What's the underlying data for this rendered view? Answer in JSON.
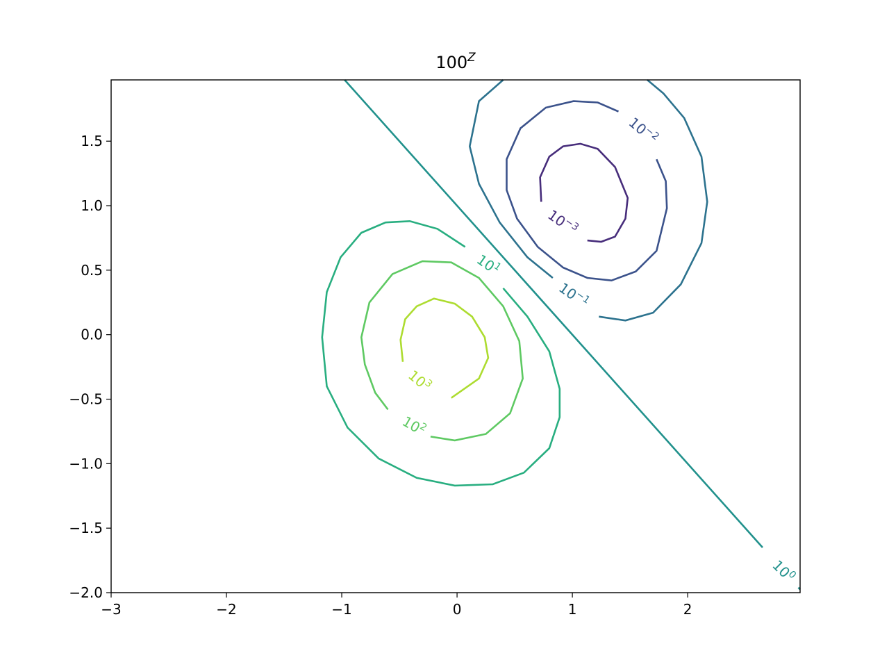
{
  "chart_data": {
    "type": "contour",
    "title": {
      "base": "100",
      "exponent": "Z"
    },
    "xlim": [
      -3,
      2.975
    ],
    "ylim": [
      -2,
      1.975
    ],
    "xticks": [
      {
        "value": -3,
        "label": "−3"
      },
      {
        "value": -2,
        "label": "−2"
      },
      {
        "value": -1,
        "label": "−1"
      },
      0,
      1,
      2
    ],
    "yticks": [
      {
        "value": -2,
        "label": "−2.0"
      },
      {
        "value": -1.5,
        "label": "−1.5"
      },
      {
        "value": -1,
        "label": "−1.0"
      },
      {
        "value": -0.5,
        "label": "−0.5"
      },
      {
        "value": 0,
        "label": "0.0"
      },
      0.5,
      {
        "value": 1,
        "label": "1.0"
      },
      1.5
    ],
    "series": [
      {
        "level": 0.001,
        "label": {
          "base": "10",
          "exponent": "−3"
        },
        "color": "#472d7b",
        "x": [
          0.73,
          0.72,
          0.8,
          0.92,
          1.07,
          1.22,
          1.37,
          1.48,
          1.46,
          1.37,
          1.25,
          1.13
        ],
        "y": [
          1.03,
          1.22,
          1.38,
          1.46,
          1.48,
          1.44,
          1.3,
          1.06,
          0.9,
          0.76,
          0.72,
          0.73
        ]
      },
      {
        "level": 0.01,
        "label": {
          "base": "10",
          "exponent": "−2"
        },
        "color": "#3b528b",
        "x": [
          1.4,
          1.22,
          1.01,
          0.77,
          0.55,
          0.43,
          0.43,
          0.52,
          0.7,
          0.92,
          1.13,
          1.34,
          1.55,
          1.73,
          1.82,
          1.81,
          1.73
        ],
        "y": [
          1.73,
          1.8,
          1.81,
          1.76,
          1.6,
          1.36,
          1.12,
          0.9,
          0.68,
          0.52,
          0.44,
          0.42,
          0.49,
          0.65,
          0.98,
          1.19,
          1.36
        ]
      },
      {
        "level": 0.1,
        "label": {
          "base": "10",
          "exponent": "−1"
        },
        "color": "#2c728e",
        "x": [
          0.4,
          0.19,
          0.11,
          0.19,
          0.37,
          0.61,
          0.83,
          null,
          1.23,
          1.46,
          1.7,
          1.94,
          2.12,
          2.17,
          2.12,
          1.97,
          1.79,
          1.65
        ],
        "y": [
          1.975,
          1.81,
          1.46,
          1.17,
          0.87,
          0.6,
          0.44,
          null,
          0.14,
          0.11,
          0.17,
          0.39,
          0.71,
          1.03,
          1.38,
          1.68,
          1.87,
          1.975
        ]
      },
      {
        "level": 1,
        "label": {
          "base": "10",
          "exponent": "0"
        },
        "color": "#21918c",
        "x": [
          -0.975,
          2.65,
          null,
          2.96,
          2.975
        ],
        "y": [
          1.975,
          -1.65,
          null,
          -1.96,
          -1.975
        ]
      },
      {
        "level": 10,
        "label": {
          "base": "10",
          "exponent": "1"
        },
        "color": "#28ae80",
        "x": [
          0.4,
          0.61,
          0.8,
          0.89,
          0.89,
          0.8,
          0.58,
          0.31,
          -0.02,
          -0.35,
          -0.68,
          -0.95,
          -1.13,
          -1.17,
          -1.13,
          -1.01,
          -0.83,
          -0.62,
          -0.41,
          -0.17,
          0.07
        ],
        "y": [
          0.36,
          0.14,
          -0.13,
          -0.42,
          -0.64,
          -0.88,
          -1.07,
          -1.16,
          -1.17,
          -1.11,
          -0.96,
          -0.72,
          -0.4,
          -0.02,
          0.33,
          0.6,
          0.79,
          0.87,
          0.88,
          0.82,
          0.68
        ]
      },
      {
        "level": 100,
        "label": {
          "base": "10",
          "exponent": "2"
        },
        "color": "#5ec962",
        "x": [
          -0.23,
          -0.02,
          0.25,
          0.46,
          0.57,
          0.54,
          0.4,
          0.19,
          -0.05,
          -0.3,
          -0.56,
          -0.76,
          -0.83,
          -0.8,
          -0.71,
          -0.6
        ],
        "y": [
          -0.79,
          -0.82,
          -0.77,
          -0.61,
          -0.34,
          -0.05,
          0.22,
          0.44,
          0.56,
          0.57,
          0.47,
          0.25,
          -0.02,
          -0.23,
          -0.45,
          -0.58
        ]
      },
      {
        "level": 1000,
        "label": {
          "base": "10",
          "exponent": "3"
        },
        "color": "#addc30",
        "x": [
          -0.05,
          0.19,
          0.27,
          0.24,
          0.13,
          -0.02,
          -0.2,
          -0.35,
          -0.45,
          -0.49,
          -0.47
        ],
        "y": [
          -0.49,
          -0.34,
          -0.18,
          -0.02,
          0.14,
          0.24,
          0.28,
          0.22,
          0.12,
          -0.04,
          -0.21
        ]
      }
    ]
  }
}
